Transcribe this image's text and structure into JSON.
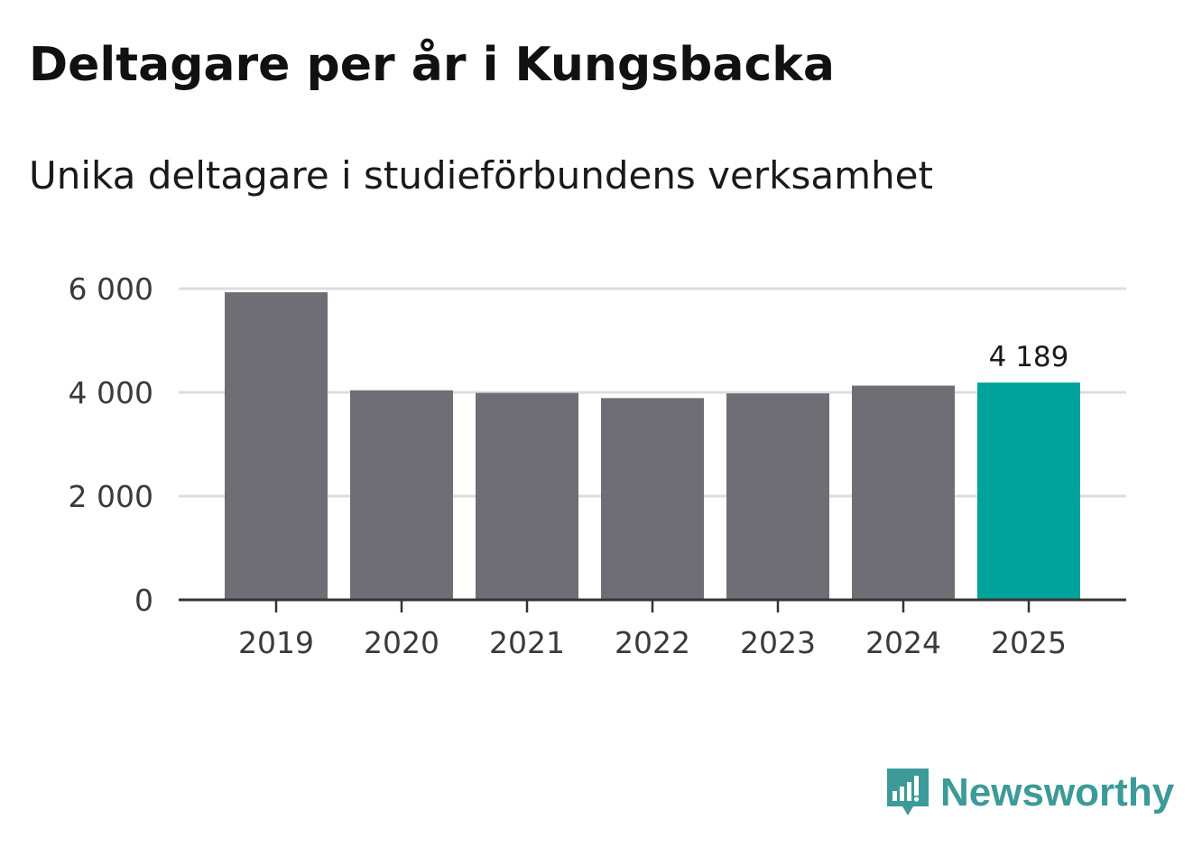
{
  "header": {
    "title": "Deltagare per år i Kungsbacka",
    "subtitle": "Unika deltagare i studieförbundens verksamhet"
  },
  "brand": {
    "name": "Newsworthy",
    "color": "#3c9a98"
  },
  "colors": {
    "bar_default": "#6f6e74",
    "bar_highlight": "#00a39a",
    "grid": "#dddddd",
    "axis": "#333333"
  },
  "chart_data": {
    "type": "bar",
    "title": "Deltagare per år i Kungsbacka",
    "subtitle": "Unika deltagare i studieförbundens verksamhet",
    "xlabel": "",
    "ylabel": "",
    "categories": [
      "2019",
      "2020",
      "2021",
      "2022",
      "2023",
      "2024",
      "2025"
    ],
    "values": [
      5930,
      4040,
      3990,
      3890,
      3980,
      4130,
      4189
    ],
    "highlight_index": 6,
    "highlight_label": "4 189",
    "ylim": [
      0,
      6000
    ],
    "yticks": [
      0,
      2000,
      4000,
      6000
    ],
    "ytick_labels": [
      "0",
      "2 000",
      "4 000",
      "6 000"
    ],
    "grid": true
  }
}
